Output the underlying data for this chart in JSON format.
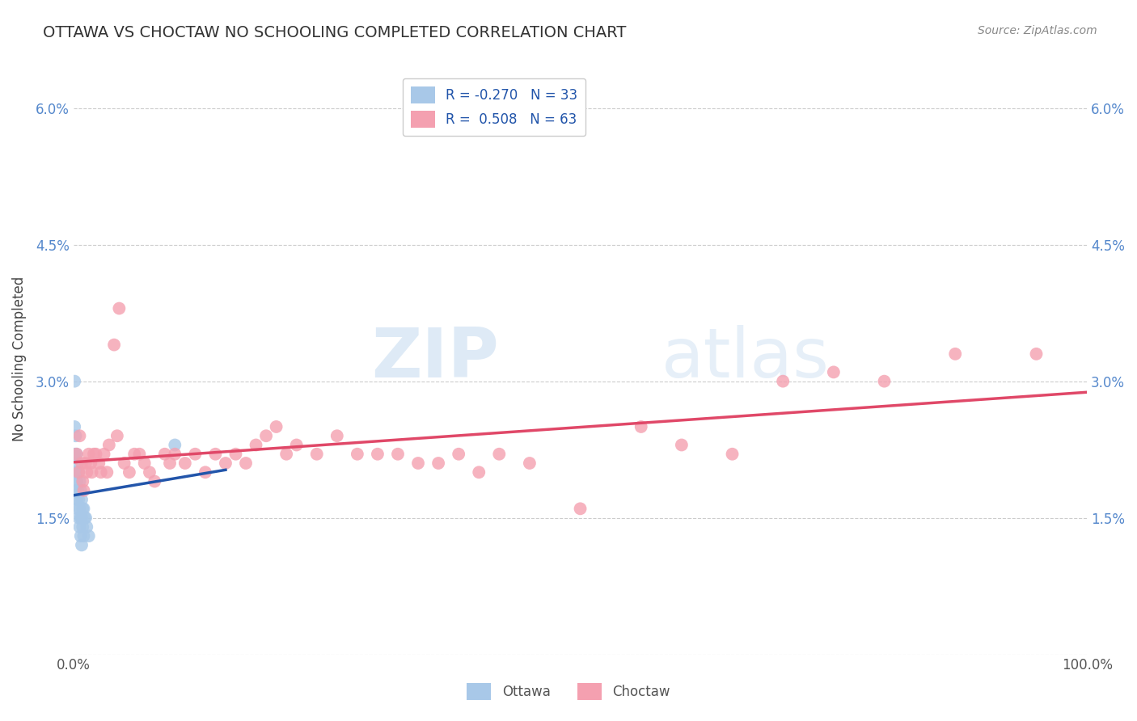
{
  "title": "OTTAWA VS CHOCTAW NO SCHOOLING COMPLETED CORRELATION CHART",
  "source_text": "Source: ZipAtlas.com",
  "ylabel": "No Schooling Completed",
  "xlim": [
    0,
    1.0
  ],
  "ylim": [
    0,
    0.065
  ],
  "yticks": [
    0.0,
    0.015,
    0.03,
    0.045,
    0.06
  ],
  "ytick_labels": [
    "",
    "1.5%",
    "3.0%",
    "4.5%",
    "6.0%"
  ],
  "xticks": [
    0.0,
    1.0
  ],
  "xtick_labels": [
    "0.0%",
    "100.0%"
  ],
  "legend_R_ottawa": "-0.270",
  "legend_N_ottawa": "33",
  "legend_R_choctaw": "0.508",
  "legend_N_choctaw": "63",
  "ottawa_color": "#a8c8e8",
  "choctaw_color": "#f4a0b0",
  "ottawa_line_color": "#2255aa",
  "choctaw_line_color": "#e04868",
  "watermark_zip": "ZIP",
  "watermark_atlas": "atlas",
  "grid_color": "#cccccc",
  "ottawa_scatter": [
    [
      0.001,
      0.03
    ],
    [
      0.001,
      0.025
    ],
    [
      0.001,
      0.022
    ],
    [
      0.002,
      0.024
    ],
    [
      0.002,
      0.02
    ],
    [
      0.002,
      0.018
    ],
    [
      0.003,
      0.022
    ],
    [
      0.003,
      0.019
    ],
    [
      0.003,
      0.017
    ],
    [
      0.004,
      0.021
    ],
    [
      0.004,
      0.018
    ],
    [
      0.004,
      0.016
    ],
    [
      0.005,
      0.02
    ],
    [
      0.005,
      0.017
    ],
    [
      0.005,
      0.015
    ],
    [
      0.006,
      0.019
    ],
    [
      0.006,
      0.016
    ],
    [
      0.006,
      0.014
    ],
    [
      0.007,
      0.018
    ],
    [
      0.007,
      0.015
    ],
    [
      0.007,
      0.013
    ],
    [
      0.008,
      0.017
    ],
    [
      0.008,
      0.015
    ],
    [
      0.008,
      0.012
    ],
    [
      0.009,
      0.016
    ],
    [
      0.009,
      0.014
    ],
    [
      0.01,
      0.016
    ],
    [
      0.01,
      0.013
    ],
    [
      0.011,
      0.015
    ],
    [
      0.012,
      0.015
    ],
    [
      0.013,
      0.014
    ],
    [
      0.015,
      0.013
    ],
    [
      0.1,
      0.023
    ]
  ],
  "choctaw_scatter": [
    [
      0.003,
      0.022
    ],
    [
      0.005,
      0.02
    ],
    [
      0.006,
      0.024
    ],
    [
      0.008,
      0.021
    ],
    [
      0.009,
      0.019
    ],
    [
      0.01,
      0.018
    ],
    [
      0.012,
      0.021
    ],
    [
      0.013,
      0.02
    ],
    [
      0.015,
      0.022
    ],
    [
      0.017,
      0.021
    ],
    [
      0.018,
      0.02
    ],
    [
      0.02,
      0.022
    ],
    [
      0.022,
      0.022
    ],
    [
      0.025,
      0.021
    ],
    [
      0.027,
      0.02
    ],
    [
      0.03,
      0.022
    ],
    [
      0.033,
      0.02
    ],
    [
      0.035,
      0.023
    ],
    [
      0.04,
      0.034
    ],
    [
      0.043,
      0.024
    ],
    [
      0.045,
      0.038
    ],
    [
      0.05,
      0.021
    ],
    [
      0.055,
      0.02
    ],
    [
      0.06,
      0.022
    ],
    [
      0.065,
      0.022
    ],
    [
      0.07,
      0.021
    ],
    [
      0.075,
      0.02
    ],
    [
      0.08,
      0.019
    ],
    [
      0.09,
      0.022
    ],
    [
      0.095,
      0.021
    ],
    [
      0.1,
      0.022
    ],
    [
      0.11,
      0.021
    ],
    [
      0.12,
      0.022
    ],
    [
      0.13,
      0.02
    ],
    [
      0.14,
      0.022
    ],
    [
      0.15,
      0.021
    ],
    [
      0.16,
      0.022
    ],
    [
      0.17,
      0.021
    ],
    [
      0.18,
      0.023
    ],
    [
      0.19,
      0.024
    ],
    [
      0.2,
      0.025
    ],
    [
      0.21,
      0.022
    ],
    [
      0.22,
      0.023
    ],
    [
      0.24,
      0.022
    ],
    [
      0.26,
      0.024
    ],
    [
      0.28,
      0.022
    ],
    [
      0.3,
      0.022
    ],
    [
      0.32,
      0.022
    ],
    [
      0.34,
      0.021
    ],
    [
      0.36,
      0.021
    ],
    [
      0.38,
      0.022
    ],
    [
      0.4,
      0.02
    ],
    [
      0.42,
      0.022
    ],
    [
      0.45,
      0.021
    ],
    [
      0.5,
      0.016
    ],
    [
      0.56,
      0.025
    ],
    [
      0.6,
      0.023
    ],
    [
      0.65,
      0.022
    ],
    [
      0.7,
      0.03
    ],
    [
      0.75,
      0.031
    ],
    [
      0.8,
      0.03
    ],
    [
      0.87,
      0.033
    ],
    [
      0.95,
      0.033
    ]
  ]
}
